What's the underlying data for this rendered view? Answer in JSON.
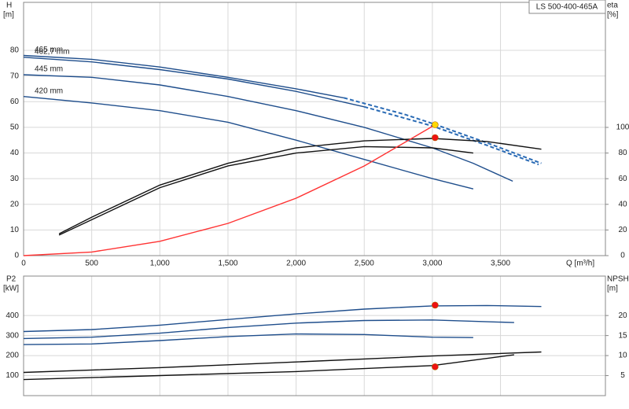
{
  "chart_data": [
    {
      "type": "line",
      "title": "LS 500-400-465A",
      "ylabel": "H",
      "yunit": "[m]",
      "y2label": "eta",
      "y2unit": "[%]",
      "xlabel": "Q [m³/h]",
      "xlim": [
        0,
        4270
      ],
      "xticks": [
        0,
        500,
        {
          "value": 1000,
          "label": "1,000"
        },
        {
          "value": 1500,
          "label": "1,500"
        },
        {
          "value": 2000,
          "label": "2,000"
        },
        {
          "value": 2500,
          "label": "2,500"
        },
        {
          "value": 3000,
          "label": "3,000"
        },
        {
          "value": 3500,
          "label": "3,500"
        }
      ],
      "ylim": [
        0,
        98.7
      ],
      "yticks": [
        0,
        10,
        20,
        30,
        40,
        50,
        60,
        70,
        80
      ],
      "y2lim": [
        0,
        197.5
      ],
      "y2ticks": [
        0,
        20,
        40,
        60,
        80,
        100
      ],
      "grid": true,
      "series": [
        {
          "name": "465 mm",
          "color": "#1f4e8c",
          "x": [
            0,
            500,
            1000,
            1500,
            2000,
            2350
          ],
          "values": [
            78,
            76.5,
            73.5,
            69.5,
            65,
            61.5
          ]
        },
        {
          "color": "#2a6bb5",
          "style": "dashed",
          "x": [
            2350,
            2800,
            3000,
            3400,
            3800
          ],
          "values": [
            61.5,
            55,
            51.5,
            44,
            36
          ]
        },
        {
          "name": "462,7 mm",
          "color": "#1f4e8c",
          "x": [
            0,
            500,
            1000,
            1500,
            2000,
            2500
          ],
          "values": [
            77.3,
            75.5,
            72.5,
            68.8,
            64,
            58
          ]
        },
        {
          "color": "#2a6bb5",
          "style": "dashed",
          "x": [
            2500,
            3000,
            3400,
            3780
          ],
          "values": [
            58,
            50.5,
            43,
            35.5
          ]
        },
        {
          "name": "445 mm",
          "color": "#1f4e8c",
          "x": [
            0,
            500,
            1000,
            1500,
            2000,
            2500,
            3000,
            3300,
            3590
          ],
          "values": [
            70.5,
            69.5,
            66.5,
            62,
            56.5,
            50,
            42,
            36,
            29
          ]
        },
        {
          "name": "420 mm",
          "color": "#1f4e8c",
          "x": [
            0,
            500,
            1000,
            1500,
            2000,
            2500,
            3000,
            3300
          ],
          "values": [
            62,
            59.5,
            56.5,
            52,
            45,
            37.5,
            30,
            26
          ]
        },
        {
          "color": "#111111",
          "axis": "y2",
          "x": [
            260,
            500,
            1000,
            1500,
            2000,
            2500,
            3000,
            3400,
            3800
          ],
          "values": [
            17,
            30,
            55,
            72,
            84,
            89.5,
            91.4,
            89,
            83
          ]
        },
        {
          "color": "#111111",
          "axis": "y2",
          "x": [
            260,
            1000,
            1500,
            2000,
            2500,
            3000,
            3300
          ],
          "values": [
            16,
            53,
            70,
            80,
            85,
            84,
            80
          ]
        },
        {
          "color": "#ff3333",
          "x": [
            0,
            500,
            1000,
            1500,
            2000,
            2500,
            3020
          ],
          "values": [
            0,
            1.4,
            5.59,
            12.58,
            22.37,
            34.95,
            51
          ]
        },
        {
          "color": "#ffd700",
          "marker": true,
          "x": [
            3020
          ],
          "values": [
            51
          ]
        },
        {
          "color": "#ee1111",
          "marker": true,
          "axis": "y2",
          "x": [
            3020
          ],
          "values": [
            92
          ]
        }
      ]
    },
    {
      "type": "line",
      "ylabel": "P2",
      "yunit": "[kW]",
      "y2label": "NPSH",
      "y2unit": "[m]",
      "xlim": [
        0,
        4270
      ],
      "xticks": [
        0,
        500,
        1000,
        1500,
        2000,
        2500,
        3000,
        3500
      ],
      "ylim": [
        0,
        597
      ],
      "yticks": [
        100,
        200,
        300,
        400
      ],
      "y2lim": [
        0,
        29.85
      ],
      "y2ticks": [
        5,
        10,
        15,
        20
      ],
      "grid": true,
      "series": [
        {
          "color": "#1f4e8c",
          "x": [
            0,
            500,
            1000,
            1500,
            2000,
            2500,
            3000,
            3400,
            3800
          ],
          "values": [
            320,
            330,
            352,
            380,
            408,
            432,
            448,
            450,
            445
          ]
        },
        {
          "color": "#1f4e8c",
          "x": [
            0,
            500,
            1000,
            1500,
            2000,
            2500,
            3000,
            3600
          ],
          "values": [
            285,
            292,
            312,
            340,
            362,
            375,
            378,
            365
          ]
        },
        {
          "color": "#1f4e8c",
          "x": [
            0,
            500,
            1000,
            1500,
            2000,
            2500,
            3000,
            3300
          ],
          "values": [
            255,
            258,
            275,
            295,
            308,
            305,
            292,
            290
          ]
        },
        {
          "color": "#111111",
          "axis": "y2",
          "x": [
            0,
            1000,
            2000,
            3000,
            3800
          ],
          "values": [
            5.8,
            7,
            8.4,
            9.9,
            10.9
          ]
        },
        {
          "color": "#111111",
          "axis": "y2",
          "x": [
            0,
            1000,
            2000,
            3000,
            3600
          ],
          "values": [
            4,
            5,
            6,
            7.5,
            10.2
          ]
        },
        {
          "color": "#ee1111",
          "marker": true,
          "x": [
            3020
          ],
          "values": [
            452
          ]
        },
        {
          "color": "#ee1111",
          "marker": true,
          "axis": "y2",
          "x": [
            3020
          ],
          "values": [
            7.2
          ]
        }
      ]
    }
  ]
}
